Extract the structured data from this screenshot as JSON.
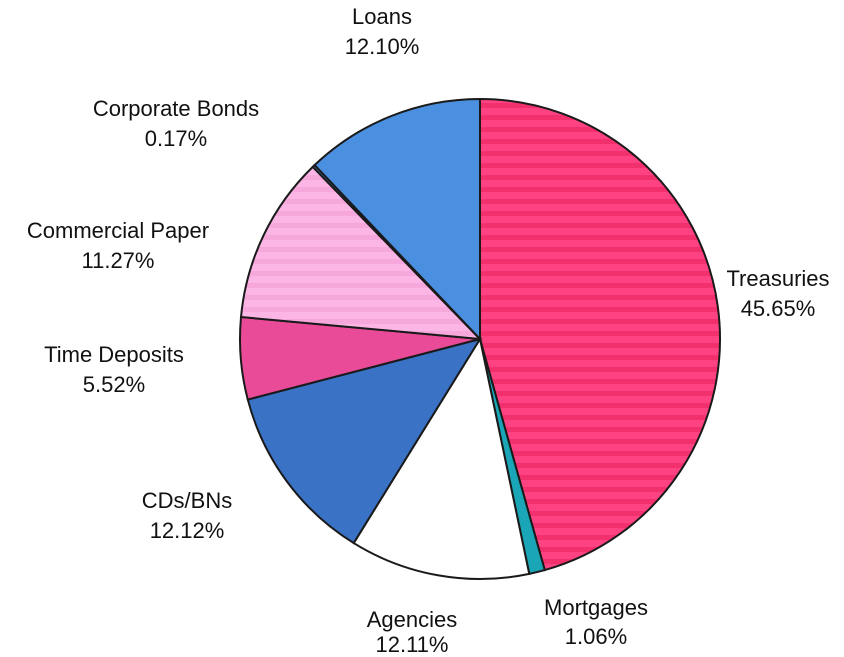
{
  "chart_data": {
    "type": "pie",
    "title": "",
    "slices": [
      {
        "label": "Treasuries",
        "value": 45.65,
        "value_label": "45.65%",
        "color": "#ff4281",
        "pattern": "stripes"
      },
      {
        "label": "Mortgages",
        "value": 1.06,
        "value_label": "1.06%",
        "color": "#1aa6b7",
        "pattern": "solid"
      },
      {
        "label": "Agencies",
        "value": 12.11,
        "value_label": "12.11%",
        "color": "#ffffff",
        "pattern": "solid"
      },
      {
        "label": "CDs/BNs",
        "value": 12.12,
        "value_label": "12.12%",
        "color": "#3a72c6",
        "pattern": "solid"
      },
      {
        "label": "Time Deposits",
        "value": 5.52,
        "value_label": "5.52%",
        "color": "#ea4b98",
        "pattern": "solid"
      },
      {
        "label": "Commercial Paper",
        "value": 11.27,
        "value_label": "11.27%",
        "color": "#fbb6e6",
        "pattern": "stripes"
      },
      {
        "label": "Corporate Bonds",
        "value": 0.17,
        "value_label": "0.17%",
        "color": "#4b8fe0",
        "pattern": "solid"
      },
      {
        "label": "Loans",
        "value": 12.1,
        "value_label": "12.10%",
        "color": "#4b8fe0",
        "pattern": "solid"
      }
    ],
    "start": "top",
    "direction": "clockwise"
  }
}
